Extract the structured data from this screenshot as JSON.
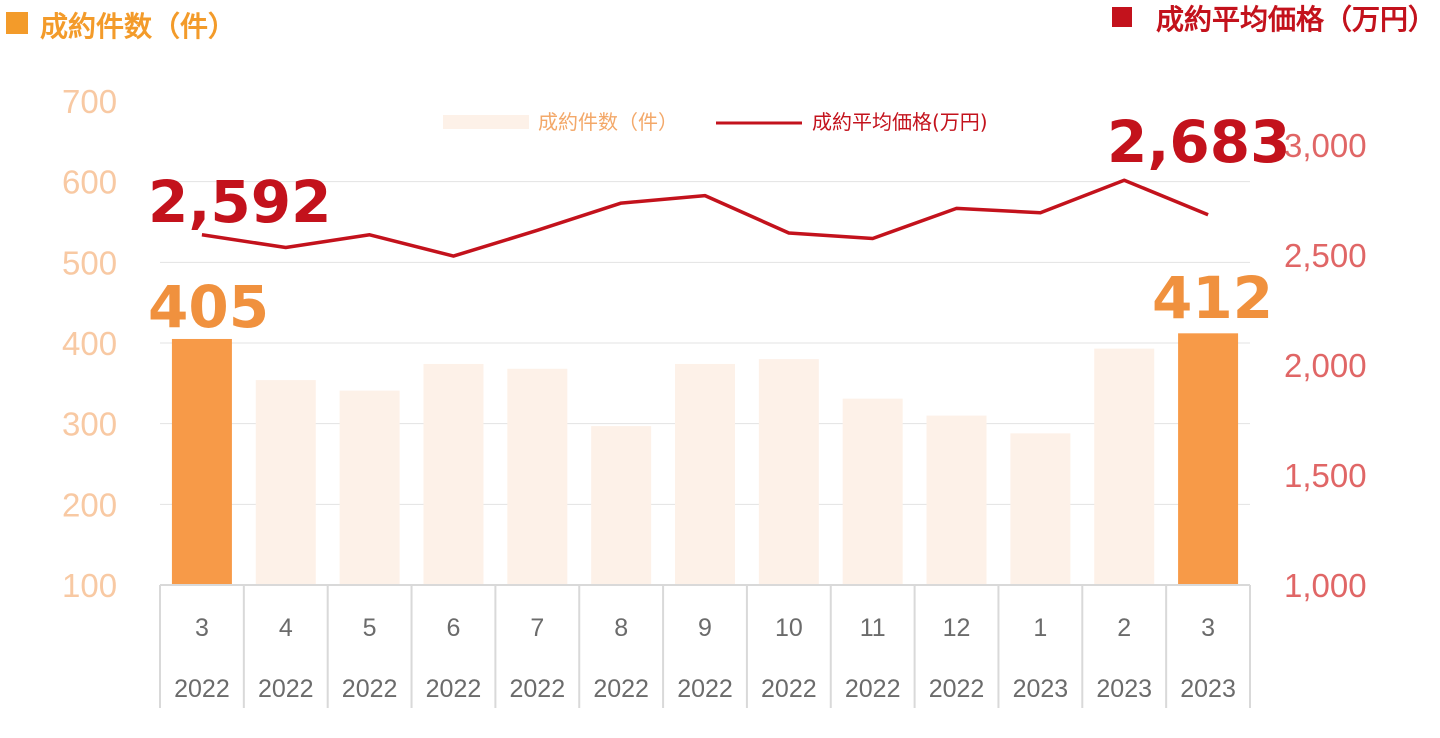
{
  "header": {
    "left_title": "成約件数（件）",
    "right_title": "成約平均価格（万円）"
  },
  "legend": {
    "bar_label": "成約件数（件）",
    "line_label": "成約平均価格(万円)"
  },
  "highlights": {
    "first_price": "2,592",
    "last_price": "2,683",
    "first_count": "405",
    "last_count": "412"
  },
  "colors": {
    "bar_highlight": "#f79a48",
    "bar_normal": "#fdf1e8",
    "line": "#c3121c",
    "left_axis_text": "#f8c9a3",
    "right_axis_text": "#e06666",
    "left_title": "#f39b2a",
    "right_title": "#c3121c"
  },
  "chart_data": {
    "type": "bar",
    "categories": [
      "3",
      "4",
      "5",
      "6",
      "7",
      "8",
      "9",
      "10",
      "11",
      "12",
      "1",
      "2",
      "3"
    ],
    "years": [
      "2022",
      "2022",
      "2022",
      "2022",
      "2022",
      "2022",
      "2022",
      "2022",
      "2022",
      "2022",
      "2023",
      "2023",
      "2023"
    ],
    "series": [
      {
        "name": "成約件数（件）",
        "type": "bar",
        "axis": "left",
        "values": [
          405,
          354,
          341,
          374,
          368,
          297,
          374,
          380,
          331,
          310,
          288,
          393,
          412
        ],
        "highlighted_indices": [
          0,
          12
        ]
      },
      {
        "name": "成約平均価格(万円)",
        "type": "line",
        "axis": "right",
        "values": [
          2592,
          2534,
          2592,
          2495,
          2612,
          2736,
          2770,
          2600,
          2575,
          2712,
          2692,
          2840,
          2683
        ]
      }
    ],
    "left_axis": {
      "ylim": [
        100,
        700
      ],
      "ticks": [
        "100",
        "200",
        "300",
        "400",
        "500",
        "600",
        "700"
      ]
    },
    "right_axis": {
      "ylim": [
        1000,
        3200
      ],
      "ticks": [
        "1,000",
        "1,500",
        "2,000",
        "2,500",
        "3,000"
      ]
    },
    "legend_position": "top-center"
  }
}
